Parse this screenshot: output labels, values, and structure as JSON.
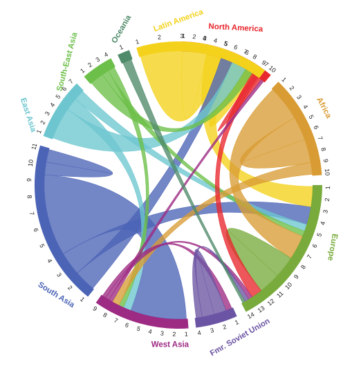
{
  "diagram": {
    "type": "chord",
    "regions": [
      {
        "key": "north_america",
        "name": "North America",
        "color": "#e8262d",
        "ticks": 10
      },
      {
        "key": "africa",
        "name": "Africa",
        "color": "#d99c34",
        "ticks": 10
      },
      {
        "key": "europe",
        "name": "Europe",
        "color": "#78ab3c",
        "ticks": 14
      },
      {
        "key": "fsu",
        "name": "Fmr. Soviet Union",
        "color": "#6b54a3",
        "ticks": 4
      },
      {
        "key": "west_asia",
        "name": "West Asia",
        "color": "#9d2a83",
        "ticks": 9
      },
      {
        "key": "south_asia",
        "name": "South Asia",
        "color": "#4c64b6",
        "ticks": 11
      },
      {
        "key": "east_asia",
        "name": "East Asia",
        "color": "#6dc6cf",
        "ticks": 7
      },
      {
        "key": "southeast_asia",
        "name": "South-East Asia",
        "color": "#6cbf48",
        "ticks": 4
      },
      {
        "key": "oceania",
        "name": "Oceania",
        "color": "#4f8a6a",
        "ticks": 1
      },
      {
        "key": "latin_america",
        "name": "Latin America",
        "color": "#f4d21b",
        "ticks": 7
      }
    ],
    "flows": [
      {
        "from": "latin_america",
        "to": "north_america",
        "value": 4,
        "color": "#f4d21b"
      },
      {
        "from": "latin_america",
        "to": "europe",
        "value": 1.5,
        "color": "#f4d21b"
      },
      {
        "from": "latin_america",
        "to": "latin_america",
        "value": 0.8,
        "color": "#f4d21b"
      },
      {
        "from": "south_asia",
        "to": "north_america",
        "value": 1.2,
        "color": "#4c64b6"
      },
      {
        "from": "south_asia",
        "to": "europe",
        "value": 1.3,
        "color": "#4c64b6"
      },
      {
        "from": "south_asia",
        "to": "west_asia",
        "value": 4.5,
        "color": "#4c64b6"
      },
      {
        "from": "south_asia",
        "to": "south_asia",
        "value": 0.7,
        "color": "#4c64b6"
      },
      {
        "from": "east_asia",
        "to": "north_america",
        "value": 1.5,
        "color": "#6dc6cf"
      },
      {
        "from": "east_asia",
        "to": "west_asia",
        "value": 0.6,
        "color": "#6dc6cf"
      },
      {
        "from": "east_asia",
        "to": "europe",
        "value": 0.5,
        "color": "#6dc6cf"
      },
      {
        "from": "southeast_asia",
        "to": "north_america",
        "value": 0.8,
        "color": "#6cbf48"
      },
      {
        "from": "southeast_asia",
        "to": "europe",
        "value": 0.4,
        "color": "#6cbf48"
      },
      {
        "from": "southeast_asia",
        "to": "west_asia",
        "value": 0.4,
        "color": "#6cbf48"
      },
      {
        "from": "africa",
        "to": "europe",
        "value": 1.8,
        "color": "#d99c34"
      },
      {
        "from": "africa",
        "to": "africa",
        "value": 1.2,
        "color": "#d99c34"
      },
      {
        "from": "africa",
        "to": "west_asia",
        "value": 0.6,
        "color": "#d99c34"
      },
      {
        "from": "europe",
        "to": "europe",
        "value": 1.6,
        "color": "#78ab3c"
      },
      {
        "from": "north_america",
        "to": "europe",
        "value": 0.8,
        "color": "#e8262d"
      },
      {
        "from": "north_america",
        "to": "latin_america",
        "value": 0.3,
        "color": "#e8262d"
      },
      {
        "from": "west_asia",
        "to": "north_america",
        "value": 0.3,
        "color": "#9d2a83"
      },
      {
        "from": "west_asia",
        "to": "europe",
        "value": 0.3,
        "color": "#9d2a83"
      },
      {
        "from": "west_asia",
        "to": "fsu",
        "value": 0.3,
        "color": "#9d2a83"
      },
      {
        "from": "fsu",
        "to": "fsu",
        "value": 0.6,
        "color": "#6b54a3"
      },
      {
        "from": "fsu",
        "to": "europe",
        "value": 0.3,
        "color": "#6b54a3"
      },
      {
        "from": "oceania",
        "to": "europe",
        "value": 0.2,
        "color": "#4f8a6a"
      }
    ]
  }
}
